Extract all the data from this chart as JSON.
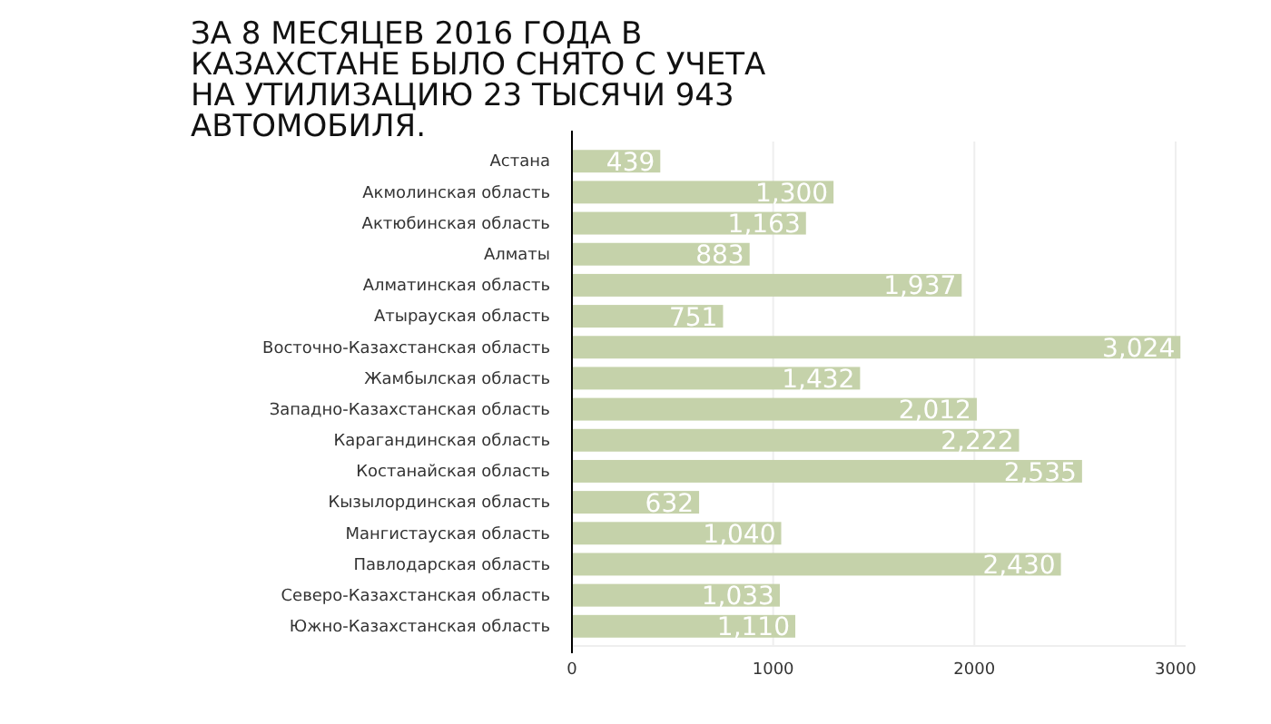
{
  "chart_data": {
    "type": "bar",
    "orientation": "horizontal",
    "title": "ЗА 8 МЕСЯЦЕВ 2016 ГОДА В КАЗАХСТАНЕ БЫЛО СНЯТО С УЧЕТА НА УТИЛИЗАЦИЮ 23 ТЫСЯЧИ 943 АВТОМОБИЛЯ.",
    "categories": [
      "Астана",
      "Акмолинская область",
      "Актюбинская область",
      "Алматы",
      "Алматинская область",
      "Атырауская область",
      "Восточно-Казахстанская область",
      "Жамбылская область",
      "Западно-Казахстанская область",
      "Карагандинская область",
      "Костанайская область",
      "Кызылординская область",
      "Мангистауская область",
      "Павлодарская область",
      "Северо-Казахстанская область",
      "Южно-Казахстанская область"
    ],
    "values": [
      439,
      1300,
      1163,
      883,
      1937,
      751,
      3024,
      1432,
      2012,
      2222,
      2535,
      632,
      1040,
      2430,
      1033,
      1110
    ],
    "value_labels": [
      "439",
      "1,300",
      "1,163",
      "883",
      "1,937",
      "751",
      "3,024",
      "1,432",
      "2,012",
      "2,222",
      "2,535",
      "632",
      "1,040",
      "2,430",
      "1,033",
      "1,110"
    ],
    "color": "#c5d2aa",
    "xlim": [
      0,
      3050
    ],
    "xticks": [
      0,
      1000,
      2000,
      3000
    ],
    "grid": "x"
  }
}
